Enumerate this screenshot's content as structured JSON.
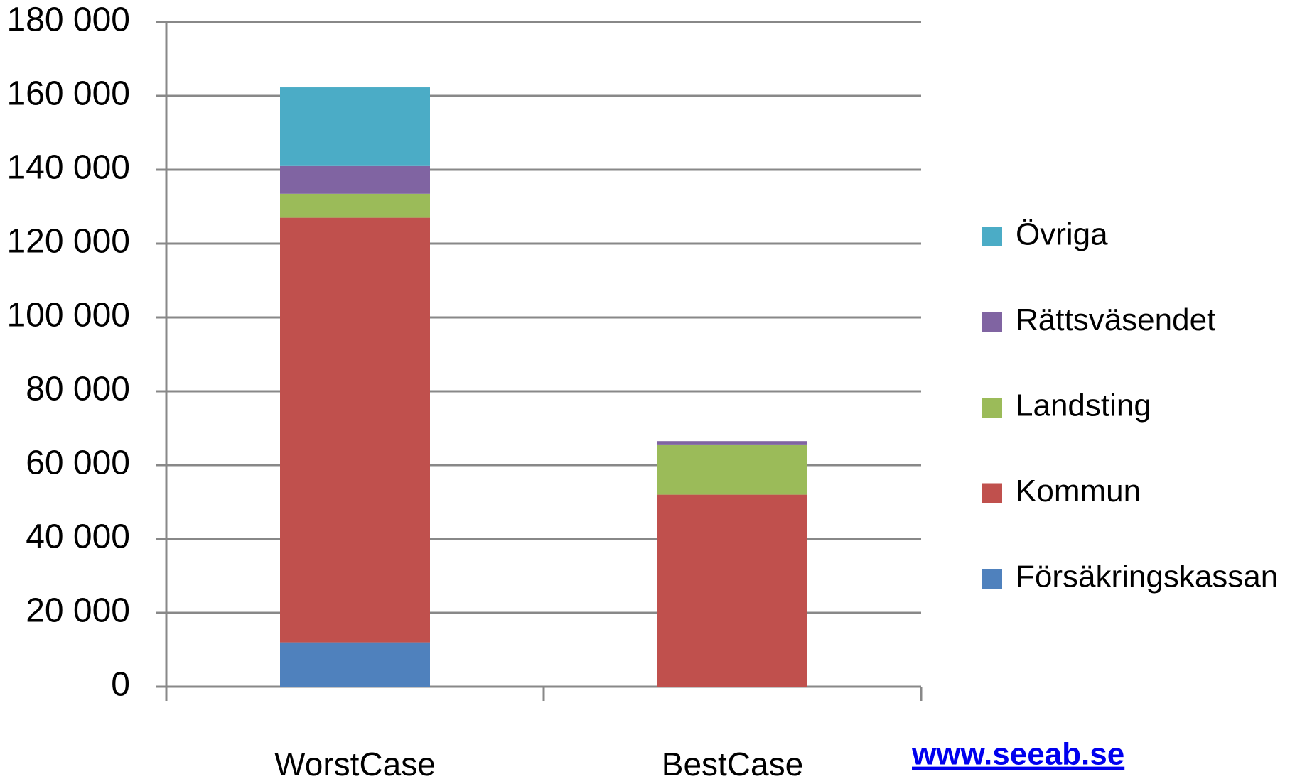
{
  "chart_data": {
    "type": "stacked_bar",
    "categories": [
      "WorstCase",
      "BestCase"
    ],
    "series": [
      {
        "name": "Försäkringskassan",
        "color": "#4f81bd",
        "values": [
          12000,
          0
        ]
      },
      {
        "name": "Kommun",
        "color": "#c0504d",
        "values": [
          115000,
          52000
        ]
      },
      {
        "name": "Landsting",
        "color": "#9bbb59",
        "values": [
          6500,
          13600
        ]
      },
      {
        "name": "Rättsväsendet",
        "color": "#8064a2",
        "values": [
          7500,
          900
        ]
      },
      {
        "name": "Övriga",
        "color": "#4bacc6",
        "values": [
          21300,
          0
        ]
      }
    ],
    "ylim": [
      0,
      180000
    ],
    "yticks": [
      0,
      {
        "value": 20000,
        "label": "20 000"
      },
      {
        "value": 40000,
        "label": "40 000"
      },
      {
        "value": 60000,
        "label": "60 000"
      },
      {
        "value": 80000,
        "label": "80 000"
      },
      {
        "value": 100000,
        "label": "100 000"
      },
      {
        "value": 120000,
        "label": "120 000"
      },
      {
        "value": 140000,
        "label": "140 000"
      },
      {
        "value": 160000,
        "label": "160 000"
      },
      {
        "value": 180000,
        "label": "180 000"
      }
    ],
    "grid": true,
    "legend": "right",
    "annotation": "www.seeab.se"
  }
}
